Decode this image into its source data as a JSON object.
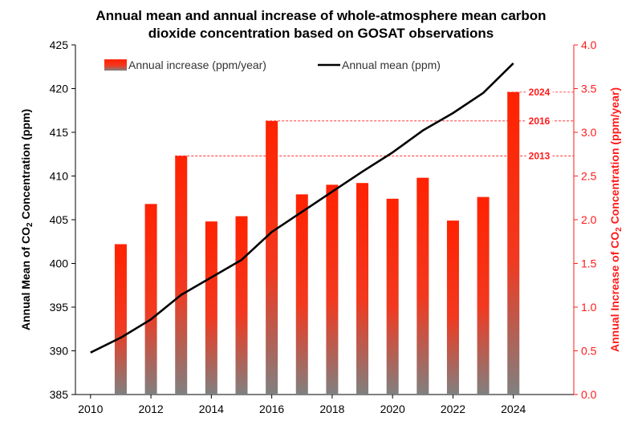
{
  "chart_data": {
    "type": "bar+line",
    "title_line1": "Annual mean and annual increase of whole-atmosphere mean carbon",
    "title_line2": "dioxide concentration based on GOSAT observations",
    "ylabel_left_main": "Annual Mean of CO",
    "ylabel_left_sub": "2",
    "ylabel_left_end": " Concentration (ppm)",
    "ylabel_right_main": "Annual Increase of CO",
    "ylabel_right_sub": "2",
    "ylabel_right_end": " Concentration (ppm/year)",
    "ylim_left": [
      385,
      425
    ],
    "ylim_right": [
      0.0,
      4.0
    ],
    "xlim": [
      2009.5,
      2026.0
    ],
    "y_ticks_left": [
      "385",
      "390",
      "395",
      "400",
      "405",
      "410",
      "415",
      "420",
      "425"
    ],
    "y_ticks_right": [
      "0.0",
      "0.5",
      "1.0",
      "1.5",
      "2.0",
      "2.5",
      "3.0",
      "3.5",
      "4.0"
    ],
    "x_ticks": [
      "2010",
      "2012",
      "2014",
      "2016",
      "2018",
      "2020",
      "2022",
      "2024"
    ],
    "legend_position": "top",
    "series": [
      {
        "name": "Annual increase (ppm/year)",
        "kind": "bar",
        "axis": "right",
        "color_top": "#ff2200",
        "color_bottom": "#808080",
        "x": [
          2011,
          2012,
          2013,
          2014,
          2015,
          2016,
          2017,
          2018,
          2019,
          2020,
          2021,
          2022,
          2023,
          2024
        ],
        "values": [
          1.72,
          2.18,
          2.73,
          1.98,
          2.04,
          3.13,
          2.29,
          2.4,
          2.42,
          2.24,
          2.48,
          1.99,
          2.26,
          3.46
        ]
      },
      {
        "name": "Annual mean (ppm)",
        "kind": "line",
        "axis": "left",
        "color": "#000000",
        "x": [
          2010,
          2011,
          2012,
          2013,
          2014,
          2015,
          2016,
          2017,
          2018,
          2019,
          2020,
          2021,
          2022,
          2023,
          2024
        ],
        "values": [
          389.8,
          391.5,
          393.6,
          396.4,
          398.4,
          400.4,
          403.6,
          405.9,
          408.2,
          410.5,
          412.7,
          415.2,
          417.2,
          419.5,
          422.9
        ]
      }
    ],
    "annotations": [
      {
        "label": "2024",
        "value": 3.46,
        "axis": "right"
      },
      {
        "label": "2016",
        "value": 3.13,
        "axis": "right"
      },
      {
        "label": "2013",
        "value": 2.73,
        "axis": "right"
      }
    ],
    "colors": {
      "right_axis": "#ff1a1a",
      "annotation": "#ff1a1a"
    }
  }
}
